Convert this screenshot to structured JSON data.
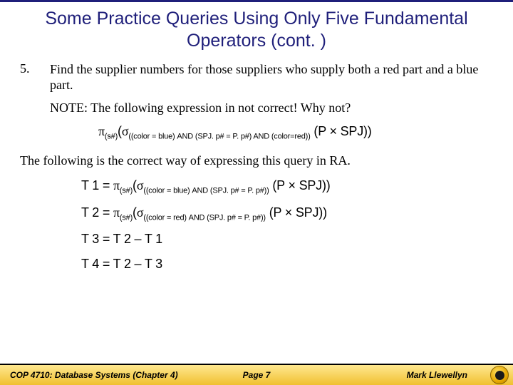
{
  "colors": {
    "title": "#1f1f7a",
    "text": "#000000",
    "footer_gradient_top": "#ffe890",
    "footer_gradient_bottom": "#f0c030",
    "logo_gold": "#e6a800",
    "logo_center": "#1a1a1a"
  },
  "title": "Some Practice Queries Using Only Five Fundamental Operators (cont. )",
  "question": {
    "number": "5.",
    "text": "Find the supplier numbers for those suppliers who supply both a red part and a blue part."
  },
  "note": "NOTE:  The following expression in not correct!  Why not?",
  "wrong_expr": {
    "pi": "π",
    "sigma": "σ",
    "pi_sub": "(s#)",
    "sigma_sub": "((color = blue) AND (SPJ. p# = P. p#) AND (color=red))",
    "tail": " (P × SPJ))"
  },
  "correct_intro": "The following is the correct way of expressing this query in RA.",
  "t_lines": [
    {
      "label": "T 1 = ",
      "pi": "π",
      "pi_sub": "(s#)",
      "sigma": "σ",
      "sigma_sub": "((color = blue) AND (SPJ. p# = P. p#))",
      "tail": " (P × SPJ))"
    },
    {
      "label": "T 2 = ",
      "pi": "π",
      "pi_sub": "(s#)",
      "sigma": "σ",
      "sigma_sub": "((color = red) AND (SPJ. p# = P. p#))",
      "tail": " (P × SPJ))"
    },
    {
      "plain": "T 3 = T 2 – T 1"
    },
    {
      "plain": "T 4 = T 2 – T 3"
    }
  ],
  "footer": {
    "course": "COP 4710: Database Systems  (Chapter 4)",
    "page": "Page 7",
    "author": "Mark Llewellyn"
  }
}
